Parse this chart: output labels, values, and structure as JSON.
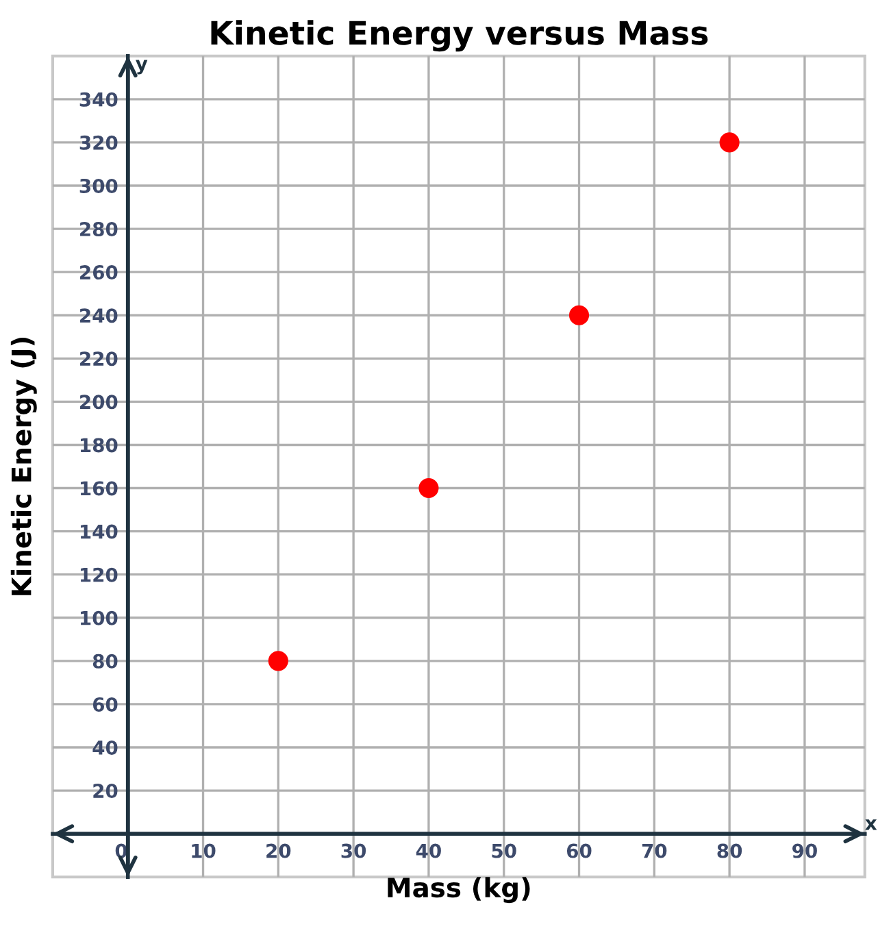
{
  "chart_data": {
    "type": "scatter",
    "title": "Kinetic Energy versus Mass",
    "xlabel": "Mass (kg)",
    "ylabel": "Kinetic Energy (J)",
    "annotations": [
      "x",
      "y"
    ],
    "x": [
      20,
      40,
      60,
      80
    ],
    "series": [
      {
        "color": "#ff0000",
        "values": [
          80,
          160,
          240,
          320
        ]
      }
    ],
    "xlim": [
      -10,
      98
    ],
    "ylim": [
      -20,
      360
    ],
    "xticks": [
      0,
      10,
      20,
      30,
      40,
      50,
      60,
      70,
      80,
      90
    ],
    "yticks": [
      {
        "value": 0,
        "label": null
      },
      20,
      40,
      60,
      80,
      100,
      120,
      140,
      160,
      180,
      200,
      220,
      240,
      260,
      280,
      300,
      320,
      340
    ],
    "grid": true,
    "marker": "circle",
    "legend": false
  }
}
